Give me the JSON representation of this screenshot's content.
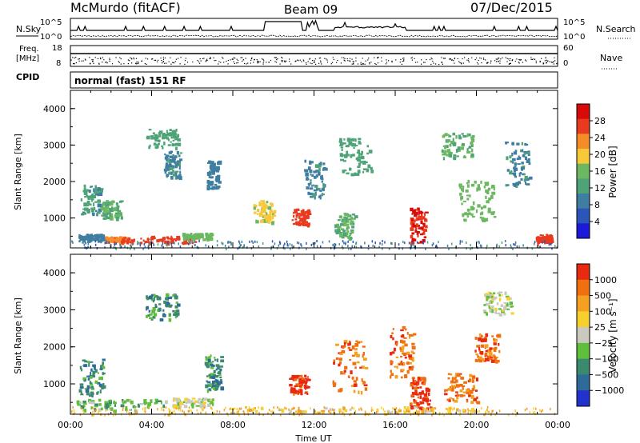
{
  "header": {
    "station": "McMurdo (fitACF)",
    "beam": "Beam 09",
    "date": "07/Dec/2015",
    "mode": "normal (fast) 151 RF"
  },
  "top_panels": {
    "nsky_label": "N.Sky",
    "nsearch_label": "N.Search",
    "nsky_ticks": [
      "10^5",
      "10^0"
    ],
    "nsearch_ticks": [
      "10^5",
      "10^0"
    ],
    "freq_label_1": "Freq.",
    "freq_label_2": "[MHz]",
    "freq_ticks": [
      "18",
      "8"
    ],
    "nave_label": "Nave",
    "nave_ticks": [
      "60",
      "0"
    ],
    "cpid_label": "CPID"
  },
  "chart_data": [
    {
      "type": "heatmap",
      "name": "power",
      "ylabel": "Slant Range [km]",
      "ylim": [
        180,
        4500
      ],
      "yticks": [
        "1000",
        "2000",
        "3000",
        "4000"
      ],
      "colorbar_label": "Power [dB]",
      "colorbar_ticks": [
        "28",
        "24",
        "20",
        "16",
        "12",
        "8",
        "4"
      ],
      "colors": [
        "#1a1ad8",
        "#2c55b8",
        "#3f7ea0",
        "#4ea377",
        "#6cb861",
        "#f7c93a",
        "#f48c2a",
        "#e83a1f",
        "#d90a0a"
      ],
      "blobs": [
        {
          "t": 1.0,
          "r": 480,
          "dt": 0.6,
          "dr": 90,
          "v": 8
        },
        {
          "t": 2.2,
          "r": 420,
          "dt": 0.5,
          "dr": 80,
          "v": 24
        },
        {
          "t": 4.3,
          "r": 430,
          "dt": 1.9,
          "dr": 90,
          "v": 26
        },
        {
          "t": 6.2,
          "r": 520,
          "dt": 0.7,
          "dr": 80,
          "v": 16
        },
        {
          "t": 1.0,
          "r": 1500,
          "dt": 0.5,
          "dr": 420,
          "v": 11
        },
        {
          "t": 2.0,
          "r": 1250,
          "dt": 0.5,
          "dr": 250,
          "v": 14
        },
        {
          "t": 4.5,
          "r": 3200,
          "dt": 0.8,
          "dr": 250,
          "v": 12
        },
        {
          "t": 5.0,
          "r": 2500,
          "dt": 0.4,
          "dr": 350,
          "v": 10
        },
        {
          "t": 7.0,
          "r": 2200,
          "dt": 0.3,
          "dr": 400,
          "v": 9
        },
        {
          "t": 9.5,
          "r": 1200,
          "dt": 0.5,
          "dr": 300,
          "v": 18
        },
        {
          "t": 11.3,
          "r": 1050,
          "dt": 0.4,
          "dr": 220,
          "v": 27
        },
        {
          "t": 12.0,
          "r": 2100,
          "dt": 0.5,
          "dr": 500,
          "v": 10
        },
        {
          "t": 14.0,
          "r": 2700,
          "dt": 0.8,
          "dr": 500,
          "v": 12
        },
        {
          "t": 13.5,
          "r": 800,
          "dt": 0.5,
          "dr": 350,
          "v": 14
        },
        {
          "t": 17.1,
          "r": 800,
          "dt": 0.4,
          "dr": 500,
          "v": 28
        },
        {
          "t": 19.0,
          "r": 3000,
          "dt": 0.8,
          "dr": 350,
          "v": 14
        },
        {
          "t": 20.0,
          "r": 1500,
          "dt": 0.9,
          "dr": 600,
          "v": 16
        },
        {
          "t": 22.0,
          "r": 2500,
          "dt": 0.6,
          "dr": 600,
          "v": 10
        },
        {
          "t": 23.3,
          "r": 450,
          "dt": 0.4,
          "dr": 120,
          "v": 26
        }
      ]
    },
    {
      "type": "heatmap",
      "name": "velocity",
      "ylabel": "Slant Range [km]",
      "xlabel": "Time UT",
      "xticks": [
        "00:00",
        "04:00",
        "08:00",
        "12:00",
        "16:00",
        "20:00",
        "00:00"
      ],
      "ylim": [
        180,
        4500
      ],
      "yticks": [
        "1000",
        "2000",
        "3000",
        "4000"
      ],
      "colorbar_label": "Velocity [m s⁻¹]",
      "colorbar_ticks": [
        "1000",
        "500",
        "100",
        "25",
        "−25",
        "−100",
        "−500",
        "−1000"
      ],
      "colors": [
        "#2233cc",
        "#2f6b99",
        "#3c8a6e",
        "#5fbf3a",
        "#c9c9c0",
        "#f7d030",
        "#f4a020",
        "#f06f0f",
        "#e82a10"
      ],
      "blobs": [
        {
          "t": 2.5,
          "r": 450,
          "dt": 2.2,
          "dr": 150,
          "v": 3
        },
        {
          "t": 6.0,
          "r": 520,
          "dt": 1.0,
          "dr": 120,
          "v": 4
        },
        {
          "t": 1.0,
          "r": 1200,
          "dt": 0.6,
          "dr": 500,
          "v": 2
        },
        {
          "t": 4.5,
          "r": 3100,
          "dt": 0.8,
          "dr": 350,
          "v": 2
        },
        {
          "t": 7.0,
          "r": 1300,
          "dt": 0.4,
          "dr": 500,
          "v": 2
        },
        {
          "t": 11.2,
          "r": 1000,
          "dt": 0.5,
          "dr": 250,
          "v": 8
        },
        {
          "t": 13.7,
          "r": 1500,
          "dt": 0.8,
          "dr": 700,
          "v": 7
        },
        {
          "t": 16.3,
          "r": 1900,
          "dt": 0.6,
          "dr": 700,
          "v": 7
        },
        {
          "t": 17.2,
          "r": 800,
          "dt": 0.5,
          "dr": 450,
          "v": 8
        },
        {
          "t": 19.2,
          "r": 900,
          "dt": 0.8,
          "dr": 400,
          "v": 7
        },
        {
          "t": 21.0,
          "r": 3200,
          "dt": 0.7,
          "dr": 300,
          "v": 4
        },
        {
          "t": 20.5,
          "r": 2000,
          "dt": 0.6,
          "dr": 400,
          "v": 7
        },
        {
          "t": 14.0,
          "r": 320,
          "dt": 6.0,
          "dr": 80,
          "v": 5
        }
      ]
    }
  ]
}
